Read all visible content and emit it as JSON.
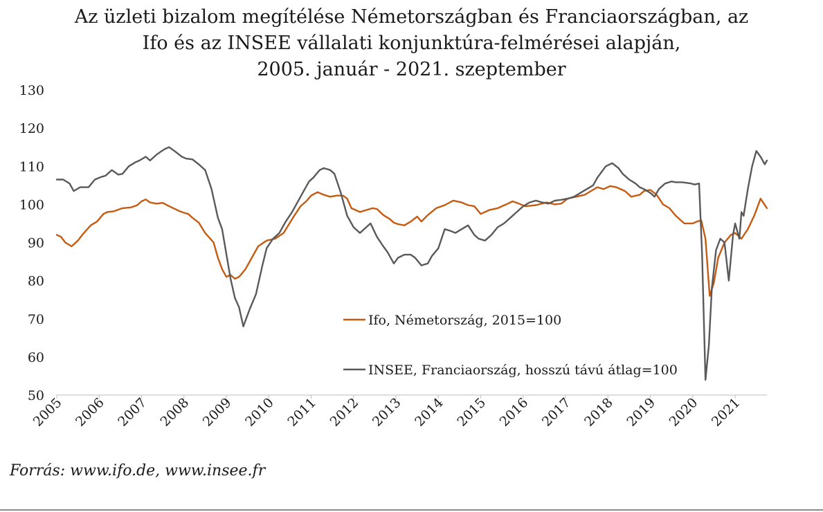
{
  "chart_data": {
    "type": "line",
    "title_lines": [
      "Az üzleti bizalom megítélése Németországban és Franciaországban, az",
      "Ifo és az INSEE vállalati konjunktúra-felmérései alapján,",
      "2005. január - 2021. szeptember"
    ],
    "xlabel": "",
    "ylabel": "",
    "ylim": [
      50,
      130
    ],
    "yticks": [
      50,
      60,
      70,
      80,
      90,
      100,
      110,
      120,
      130
    ],
    "xlim": [
      2005.0,
      2021.75
    ],
    "xticks": [
      "2005",
      "2006",
      "2007",
      "2008",
      "2009",
      "2010",
      "2011",
      "2012",
      "2013",
      "2014",
      "2015",
      "2016",
      "2017",
      "2018",
      "2019",
      "2020",
      "2021"
    ],
    "grid": false,
    "legend_placement": "center-right",
    "series": [
      {
        "name": "Ifo, Németország, 2015=100",
        "color": "#c55a11",
        "x": [
          2005.0,
          2005.1,
          2005.2,
          2005.35,
          2005.5,
          2005.6,
          2005.8,
          2005.95,
          2006.1,
          2006.2,
          2006.35,
          2006.55,
          2006.75,
          2006.9,
          2007.0,
          2007.1,
          2007.2,
          2007.35,
          2007.5,
          2007.6,
          2007.75,
          2007.9,
          2008.0,
          2008.1,
          2008.2,
          2008.35,
          2008.5,
          2008.7,
          2008.8,
          2008.9,
          2009.0,
          2009.1,
          2009.2,
          2009.3,
          2009.45,
          2009.6,
          2009.75,
          2009.95,
          2010.15,
          2010.35,
          2010.6,
          2010.75,
          2010.9,
          2011.0,
          2011.15,
          2011.3,
          2011.45,
          2011.6,
          2011.75,
          2011.85,
          2011.95,
          2012.15,
          2012.3,
          2012.45,
          2012.55,
          2012.7,
          2012.85,
          2012.95,
          2013.05,
          2013.2,
          2013.35,
          2013.5,
          2013.6,
          2013.75,
          2013.95,
          2014.15,
          2014.35,
          2014.55,
          2014.7,
          2014.85,
          2015.0,
          2015.2,
          2015.4,
          2015.6,
          2015.75,
          2015.9,
          2016.05,
          2016.3,
          2016.55,
          2016.75,
          2016.9,
          2017.05,
          2017.25,
          2017.45,
          2017.6,
          2017.75,
          2017.9,
          2018.05,
          2018.2,
          2018.4,
          2018.55,
          2018.75,
          2018.85,
          2019.0,
          2019.15,
          2019.3,
          2019.45,
          2019.6,
          2019.8,
          2020.0,
          2020.1,
          2020.2,
          2020.3,
          2020.4,
          2020.5,
          2020.6,
          2020.75,
          2020.9,
          2021.0,
          2021.15,
          2021.3,
          2021.45,
          2021.6,
          2021.75
        ],
        "values": [
          92.0,
          91.5,
          90.0,
          89.0,
          90.5,
          92.0,
          94.5,
          95.5,
          97.5,
          98.0,
          98.2,
          99.0,
          99.2,
          99.8,
          100.8,
          101.3,
          100.5,
          100.2,
          100.4,
          99.8,
          99.0,
          98.2,
          97.8,
          97.5,
          96.5,
          95.2,
          92.5,
          90.0,
          86.0,
          83.0,
          81.0,
          81.5,
          80.5,
          81.0,
          83.0,
          86.0,
          89.0,
          90.5,
          91.0,
          92.5,
          97.0,
          99.5,
          101.0,
          102.3,
          103.2,
          102.5,
          102.0,
          102.3,
          102.3,
          101.5,
          99.0,
          98.0,
          98.5,
          99.0,
          98.8,
          97.2,
          96.2,
          95.2,
          94.8,
          94.5,
          95.5,
          96.8,
          95.5,
          97.2,
          99.0,
          99.8,
          101.0,
          100.5,
          99.8,
          99.5,
          97.5,
          98.5,
          99.0,
          100.0,
          100.8,
          100.2,
          99.5,
          99.8,
          100.5,
          100.0,
          100.2,
          101.5,
          102.0,
          102.5,
          103.5,
          104.5,
          104.0,
          104.8,
          104.5,
          103.5,
          102.0,
          102.5,
          103.5,
          103.8,
          102.5,
          100.0,
          99.0,
          97.0,
          95.0,
          95.0,
          95.5,
          95.8,
          91.0,
          76.0,
          79.5,
          86.0,
          90.0,
          92.0,
          92.5,
          91.0,
          93.5,
          97.0,
          101.5,
          99.0
        ]
      },
      {
        "name": "INSEE, Franciaország, hosszú távú átlag=100",
        "color": "#595959",
        "x": [
          2005.0,
          2005.15,
          2005.3,
          2005.4,
          2005.55,
          2005.75,
          2005.9,
          2006.05,
          2006.15,
          2006.3,
          2006.45,
          2006.55,
          2006.7,
          2006.85,
          2006.95,
          2007.1,
          2007.2,
          2007.35,
          2007.45,
          2007.55,
          2007.65,
          2007.8,
          2007.95,
          2008.05,
          2008.2,
          2008.35,
          2008.5,
          2008.65,
          2008.8,
          2008.9,
          2009.0,
          2009.1,
          2009.2,
          2009.3,
          2009.4,
          2009.55,
          2009.7,
          2009.85,
          2009.95,
          2010.1,
          2010.25,
          2010.4,
          2010.55,
          2010.7,
          2010.85,
          2010.95,
          2011.05,
          2011.2,
          2011.3,
          2011.45,
          2011.55,
          2011.7,
          2011.85,
          2012.0,
          2012.15,
          2012.3,
          2012.4,
          2012.55,
          2012.7,
          2012.8,
          2012.95,
          2013.05,
          2013.2,
          2013.35,
          2013.45,
          2013.6,
          2013.75,
          2013.85,
          2014.0,
          2014.15,
          2014.3,
          2014.4,
          2014.55,
          2014.7,
          2014.85,
          2014.95,
          2015.1,
          2015.25,
          2015.4,
          2015.55,
          2015.7,
          2015.85,
          2016.0,
          2016.15,
          2016.3,
          2016.45,
          2016.6,
          2016.75,
          2016.9,
          2017.05,
          2017.2,
          2017.35,
          2017.5,
          2017.65,
          2017.75,
          2017.85,
          2017.95,
          2018.1,
          2018.25,
          2018.35,
          2018.5,
          2018.65,
          2018.75,
          2018.85,
          2019.0,
          2019.1,
          2019.2,
          2019.35,
          2019.5,
          2019.6,
          2019.75,
          2019.95,
          2020.05,
          2020.15,
          2020.22,
          2020.3,
          2020.38,
          2020.45,
          2020.55,
          2020.65,
          2020.75,
          2020.85,
          2020.95,
          2021.0,
          2021.1,
          2021.15,
          2021.2,
          2021.3,
          2021.4,
          2021.5,
          2021.6,
          2021.7,
          2021.75
        ],
        "values": [
          106.5,
          106.5,
          105.5,
          103.5,
          104.5,
          104.5,
          106.5,
          107.2,
          107.5,
          109.0,
          107.8,
          108.0,
          110.0,
          111.0,
          111.5,
          112.5,
          111.5,
          113.0,
          113.8,
          114.5,
          115.0,
          113.8,
          112.5,
          112.0,
          111.8,
          110.5,
          109.0,
          104.0,
          96.5,
          93.5,
          87.0,
          80.5,
          75.5,
          73.0,
          68.0,
          72.5,
          76.5,
          84.0,
          88.5,
          91.0,
          92.5,
          95.5,
          98.0,
          101.0,
          104.0,
          106.0,
          107.0,
          109.0,
          109.5,
          109.0,
          108.0,
          103.0,
          97.0,
          94.0,
          92.5,
          94.0,
          95.0,
          91.5,
          89.0,
          87.5,
          84.5,
          86.0,
          86.8,
          86.8,
          86.0,
          84.0,
          84.5,
          86.5,
          88.5,
          93.5,
          93.0,
          92.5,
          93.5,
          94.5,
          92.0,
          91.0,
          90.5,
          92.0,
          94.0,
          95.0,
          96.5,
          98.0,
          99.5,
          100.5,
          101.0,
          100.5,
          100.2,
          101.0,
          101.2,
          101.5,
          102.0,
          103.0,
          104.0,
          105.0,
          107.0,
          108.5,
          110.0,
          110.8,
          109.5,
          108.0,
          106.5,
          105.5,
          104.5,
          104.0,
          103.0,
          102.0,
          104.0,
          105.5,
          106.0,
          105.8,
          105.8,
          105.5,
          105.2,
          105.5,
          87.0,
          54.0,
          63.0,
          78.0,
          88.0,
          91.0,
          90.0,
          80.0,
          92.0,
          95.0,
          91.0,
          98.0,
          97.0,
          104.0,
          110.0,
          114.0,
          112.5,
          110.5,
          111.5
        ]
      }
    ]
  },
  "source_note": "Forrás: www.ifo.de, www.insee.fr"
}
